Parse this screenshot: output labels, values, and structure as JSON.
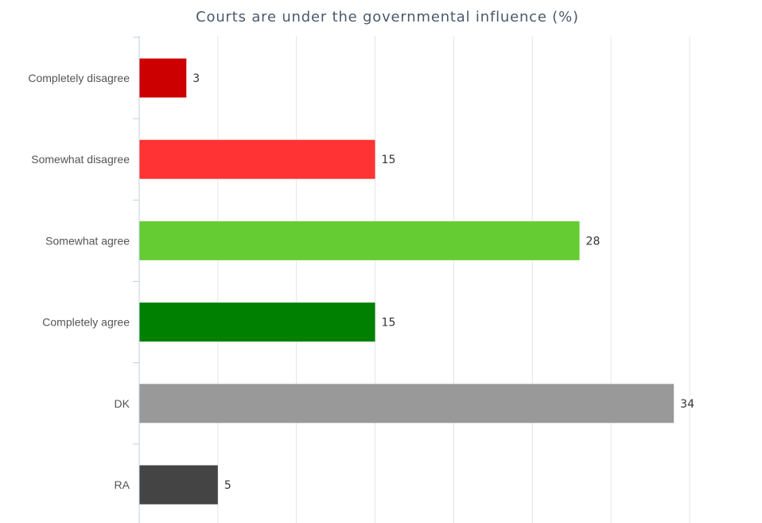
{
  "chart_data": {
    "type": "bar",
    "orientation": "horizontal",
    "title": "Courts are under the governmental influence (%)",
    "categories": [
      "Completely disagree",
      "Somewhat disagree",
      "Somewhat agree",
      "Completely agree",
      "DK",
      "RA"
    ],
    "values": [
      3,
      15,
      28,
      15,
      34,
      5
    ],
    "colors": [
      "#cc0000",
      "#ff3333",
      "#66cc33",
      "#008000",
      "#999999",
      "#444444"
    ],
    "xlim": [
      0,
      35
    ],
    "grid": true,
    "legend": "none"
  }
}
